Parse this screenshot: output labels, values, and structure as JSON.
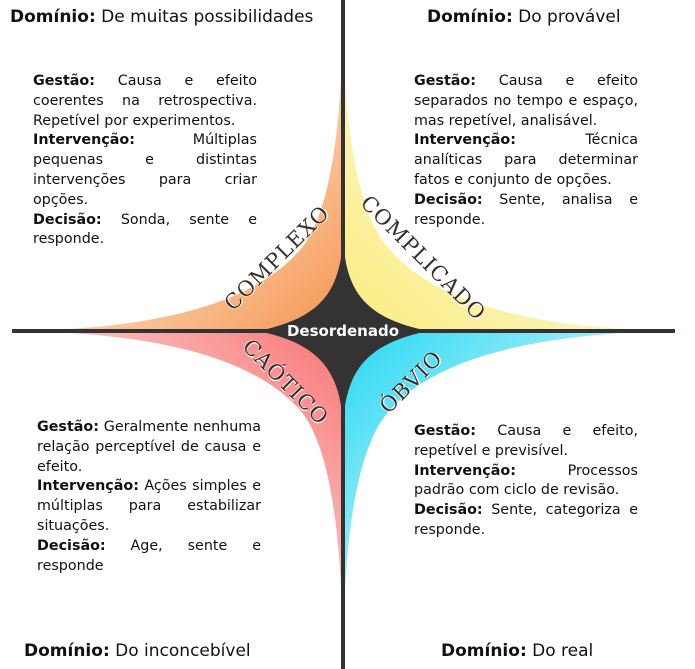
{
  "center_label": "Desordenado",
  "quadrants": {
    "complex": {
      "name": "COMPLEXO",
      "domain_key": "Domínio:",
      "domain_value": "De muitas possibilidades",
      "gestao_key": "Gestão:",
      "gestao_text": "Causa e efeito coerentes na retrospectiva. Repetível por experimentos.",
      "intervencao_key": "Intervenção:",
      "intervencao_text": "Múltiplas pequenas e distintas intervenções para criar opções.",
      "decisao_key": "Decisão:",
      "decisao_text": "Sonda, sente e responde.",
      "color": "#f7a163"
    },
    "complicated": {
      "name": "COMPLICADO",
      "domain_key": "Domínio:",
      "domain_value": "Do provável",
      "gestao_key": "Gestão:",
      "gestao_text": "Causa e efeito separados no tempo e espaço, mas repetível, analisável.",
      "intervencao_key": "Intervenção:",
      "intervencao_text": "Técnica analíticas para determinar fatos e conjunto de opções.",
      "decisao_key": "Decisão:",
      "decisao_text": "Sente, analisa e responde.",
      "color": "#fbee8a"
    },
    "chaotic": {
      "name": "CAÓTICO",
      "domain_key": "Domínio:",
      "domain_value": "Do inconcebível",
      "gestao_key": "Gestão:",
      "gestao_text": "Geralmente nenhuma relação perceptível de causa e efeito.",
      "intervencao_key": "Intervenção:",
      "intervencao_text": "Ações simples e múltiplas para estabilizar situações.",
      "decisao_key": "Decisão:",
      "decisao_text": "Age, sente e responde",
      "color": "#f98383"
    },
    "obvious": {
      "name": "ÓBVIO",
      "domain_key": "Domínio:",
      "domain_value": "Do real",
      "gestao_key": "Gestão:",
      "gestao_text": "Causa e efeito, repetível e previsível.",
      "intervencao_key": "Intervenção:",
      "intervencao_text": "Processos padrão com ciclo de revisão.",
      "decisao_key": "Decisão:",
      "decisao_text": "Sente, categoriza e responde.",
      "color": "#3fdcf4"
    }
  },
  "colors": {
    "axis": "#333333",
    "center_blob": "#333333"
  }
}
